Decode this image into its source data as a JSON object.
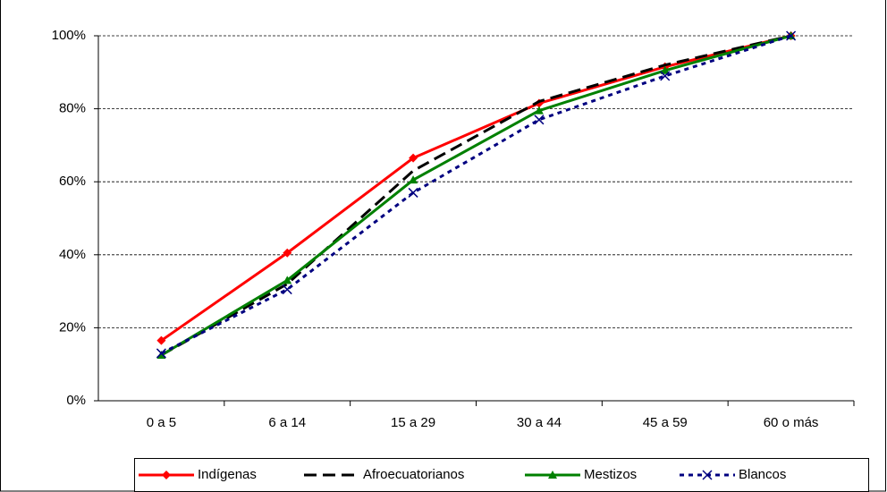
{
  "chart_data": {
    "type": "line",
    "categories": [
      "0 a 5",
      "6 a 14",
      "15 a 29",
      "30 a 44",
      "45 a 59",
      "60 o más"
    ],
    "series": [
      {
        "name": "Indígenas",
        "color": "#ff0000",
        "dash": "solid",
        "marker": "diamond",
        "values": [
          16.5,
          40.5,
          66.5,
          81.5,
          91.5,
          100
        ]
      },
      {
        "name": "Afroecuatorianos",
        "color": "#000000",
        "dash": "dash",
        "marker": "none",
        "values": [
          12.5,
          32,
          63,
          82,
          92,
          100
        ]
      },
      {
        "name": "Mestizos",
        "color": "#008000",
        "dash": "solid",
        "marker": "triangle",
        "values": [
          12.5,
          33,
          60.5,
          79.5,
          90.5,
          100
        ]
      },
      {
        "name": "Blancos",
        "color": "#000080",
        "dash": "dot",
        "marker": "x",
        "values": [
          13,
          30.5,
          57,
          77,
          89,
          100
        ]
      }
    ],
    "ylim": [
      0,
      100
    ],
    "yticks": [
      {
        "value": 0,
        "label": "0%"
      },
      {
        "value": 20,
        "label": "20%"
      },
      {
        "value": 40,
        "label": "40%"
      },
      {
        "value": 60,
        "label": "60%"
      },
      {
        "value": 80,
        "label": "80%"
      },
      {
        "value": 100,
        "label": "100%"
      }
    ],
    "grid": true,
    "legend": "bottom"
  }
}
